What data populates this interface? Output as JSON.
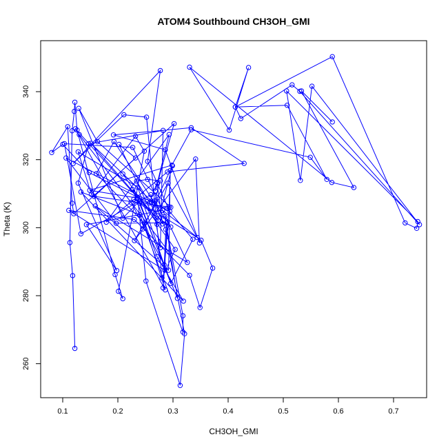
{
  "chart_data": {
    "type": "line",
    "markers": "open-circle",
    "title": "ATOM4 Southbound CH3OH_GMI",
    "xlabel": "CH3OH_GMI",
    "ylabel": "Theta (K)",
    "xlim": [
      0.06,
      0.76
    ],
    "ylim": [
      250,
      355
    ],
    "xticks": [
      0.1,
      0.2,
      0.3,
      0.4,
      0.5,
      0.6,
      0.7
    ],
    "xtick_labels": [
      "0.1",
      "0.2",
      "0.3",
      "0.4",
      "0.5",
      "0.6",
      "0.7"
    ],
    "yticks": [
      260,
      280,
      300,
      320,
      340
    ],
    "ytick_labels": [
      "260",
      "280",
      "300",
      "320",
      "340"
    ],
    "grid": false,
    "legend": "none",
    "color": "#0000ff",
    "series": [
      {
        "x": [
          0.122,
          0.118,
          0.113,
          0.117,
          0.121,
          0.122,
          0.126,
          0.195,
          0.209,
          0.201,
          0.248,
          0.232,
          0.152,
          0.128,
          0.236,
          0.284,
          0.224,
          0.13,
          0.293,
          0.321,
          0.313,
          0.251,
          0.236,
          0.123,
          0.286,
          0.248,
          0.161,
          0.193,
          0.296,
          0.239,
          0.308,
          0.285,
          0.318,
          0.318,
          0.24,
          0.133,
          0.319,
          0.271,
          0.227,
          0.273,
          0.151,
          0.275,
          0.209,
          0.304,
          0.28,
          0.252,
          0.211,
          0.119,
          0.277,
          0.254,
          0.294,
          0.106,
          0.197,
          0.289,
          0.285,
          0.111,
          0.23,
          0.33,
          0.349,
          0.372,
          0.351,
          0.281,
          0.143,
          0.198,
          0.128,
          0.147,
          0.282,
          0.277,
          0.26,
          0.133,
          0.103,
          0.227,
          0.326,
          0.159,
          0.292,
          0.295,
          0.293,
          0.282,
          0.287,
          0.267,
          0.245,
          0.299,
          0.271,
          0.202,
          0.232,
          0.157,
          0.296,
          0.163,
          0.129,
          0.209,
          0.239,
          0.296,
          0.336,
          0.289,
          0.229,
          0.344,
          0.291,
          0.23,
          0.341,
          0.348,
          0.286,
          0.192,
          0.333,
          0.429,
          0.29,
          0.179,
          0.293,
          0.268,
          0.302,
          0.12,
          0.117,
          0.109,
          0.08,
          0.1,
          0.148,
          0.257,
          0.271,
          0.281,
          0.234,
          0.254,
          0.277,
          0.267,
          0.149,
          0.298,
          0.333,
          0.549,
          0.579,
          0.507,
          0.413,
          0.589,
          0.721,
          0.742,
          0.744,
          0.506,
          0.531,
          0.552,
          0.747,
          0.53,
          0.516,
          0.423,
          0.413,
          0.437,
          0.402,
          0.33,
          0.588,
          0.628,
          0.533,
          0.589
        ],
        "y": [
          264.5,
          285.9,
          295.6,
          328.5,
          334.2,
          336.9,
          328.7,
          286.2,
          279.1,
          281.3,
          322.5,
          326.9,
          309.8,
          322.3,
          311.9,
          289.1,
          307.4,
          327.4,
          292.8,
          268.8,
          253.6,
          284.3,
          308.8,
          329.1,
          281.7,
          301.3,
          315.9,
          325.3,
          300.2,
          307.2,
          279.2,
          303.3,
          274.1,
          269.3,
          303.8,
          310.5,
          278.4,
          291.5,
          311.2,
          302.2,
          324.8,
          305.7,
          315.8,
          293.6,
          285.2,
          332.5,
          333.2,
          318.9,
          346.2,
          319.5,
          304.8,
          320.5,
          301.3,
          301.4,
          287.5,
          305.1,
          302.4,
          286.0,
          276.5,
          288.1,
          296.3,
          305.1,
          300.9,
          287.4,
          313.1,
          324.7,
          328.6,
          294.1,
          309.7,
          298.2,
          324.7,
          323.6,
          289.8,
          306.4,
          287.5,
          316.8,
          306.1,
          282.3,
          299.5,
          307.1,
          299.6,
          318.2,
          301.0,
          324.5,
          320.5,
          309.2,
          306.0,
          325.3,
          335.1,
          302.8,
          307.8,
          283.6,
          296.6,
          305.7,
          308.4,
          297.1,
          313.1,
          296.2,
          320.2,
          295.5,
          322.9,
          327.3,
          329.4,
          318.9,
          316.4,
          301.6,
          327.4,
          310.8,
          330.6,
          304.1,
          307.2,
          329.7,
          322.1,
          324.5,
          316.2,
          307.2,
          313.2,
          301.1,
          313.7,
          314.2,
          313.8,
          307.9,
          311.0,
          318.4,
          328.8,
          320.7,
          314.2,
          336.0,
          335.5,
          350.3,
          301.4,
          299.8,
          301.8,
          340.2,
          313.9,
          341.6,
          300.9,
          340.1,
          342.0,
          332.1,
          335.5,
          347.1,
          328.7,
          347.2,
          313.3,
          311.8,
          340.2,
          331.1
        ]
      }
    ]
  }
}
